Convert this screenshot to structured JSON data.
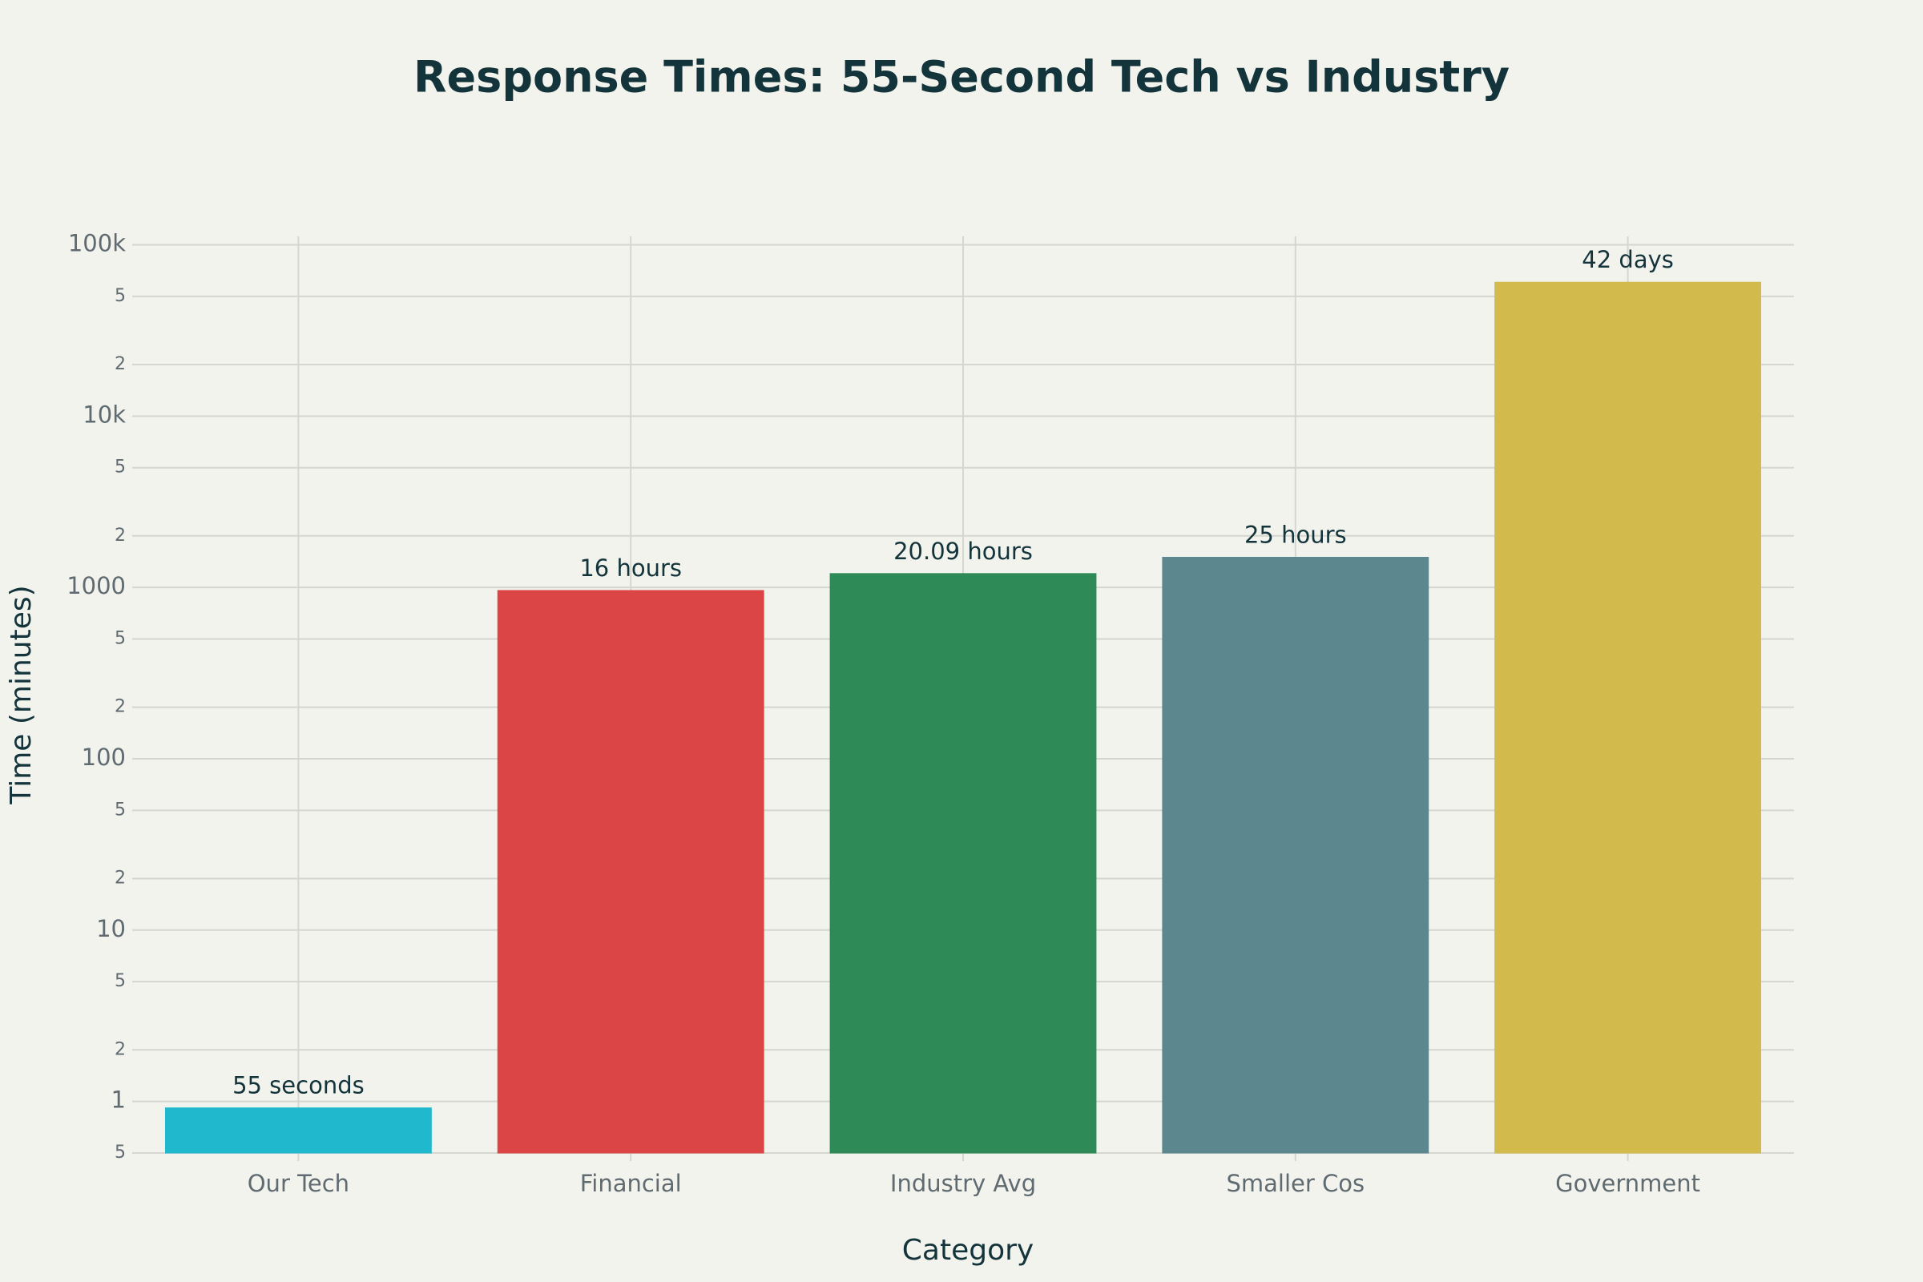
{
  "chart_data": {
    "type": "bar",
    "title": "Response Times: 55-Second Tech vs Industry",
    "x_label": "Category",
    "y_label": "Time (minutes)",
    "categories": [
      "Our Tech",
      "Financial",
      "Industry Avg",
      "Smaller Cos",
      "Government"
    ],
    "values": [
      0.9167,
      960,
      1205.4,
      1500,
      60480
    ],
    "value_labels": [
      "55 seconds",
      "16 hours",
      "20.09 hours",
      "25 hours",
      "42 days"
    ],
    "colors": [
      "#1fb8cd",
      "#db4545",
      "#2e8b57",
      "#5d878f",
      "#d2ba4c"
    ],
    "y_scale": "log",
    "ylim": [
      0.5,
      112000
    ],
    "yticks": [
      {
        "value": 0.5,
        "label": "5"
      },
      1,
      2,
      5,
      10,
      {
        "value": 20,
        "label": "2"
      },
      {
        "value": 50,
        "label": "5"
      },
      100,
      {
        "value": 200,
        "label": "2"
      },
      {
        "value": 500,
        "label": "5"
      },
      1000,
      {
        "value": 2000,
        "label": "2"
      },
      {
        "value": 5000,
        "label": "5"
      },
      {
        "value": 10000,
        "label": "10k"
      },
      {
        "value": 20000,
        "label": "2"
      },
      {
        "value": 50000,
        "label": "5"
      },
      {
        "value": 100000,
        "label": "100k"
      }
    ],
    "grid": true
  }
}
